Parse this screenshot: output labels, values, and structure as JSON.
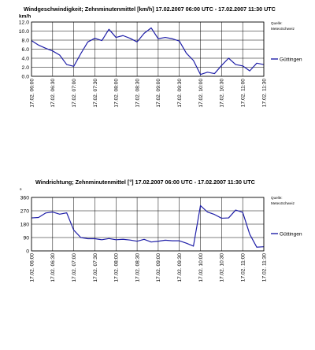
{
  "chart_data": [
    {
      "type": "line",
      "title": "Windgeschwindigkeit; Zehnminutenmittel [km/h] 17.02.2007 06:00 UTC - 17.02.2007 11:30 UTC",
      "ylabel": "km/h",
      "xlabel": "",
      "source_line1": "Quelle:",
      "source_line2": "MeteoSchweiz",
      "ylim": [
        0,
        12
      ],
      "yticks": [
        "0.0",
        "2.0",
        "4.0",
        "6.0",
        "8.0",
        "10.0",
        "12.0"
      ],
      "ytick_values": [
        0,
        2,
        4,
        6,
        8,
        10,
        12
      ],
      "xticks": [
        "17.02.  06:00",
        "17.02.  06:30",
        "17.02.  07:00",
        "17.02.  07:30",
        "17.02.  08:00",
        "17.02.  08:30",
        "17.02.  09:00",
        "17.02.  09:30",
        "17.02.  10:00",
        "17.02.  10:30",
        "17.02.  11:00",
        "17.02.  11:30"
      ],
      "grid": true,
      "legend_position": "right",
      "series": [
        {
          "name": "Güttingen",
          "color": "#1f1fa8",
          "values": [
            7.9,
            6.9,
            6.2,
            5.6,
            4.7,
            2.6,
            2.2,
            5.0,
            7.6,
            8.4,
            7.9,
            10.4,
            8.6,
            9.0,
            8.4,
            7.6,
            9.5,
            10.7,
            8.3,
            8.6,
            8.3,
            7.8,
            5.1,
            3.5,
            0.4,
            0.9,
            0.6,
            2.4,
            4.0,
            2.6,
            2.3,
            1.2,
            2.9,
            2.6
          ]
        }
      ]
    },
    {
      "type": "line",
      "title": "Windrichtung; Zehnminutenmittel [°] 17.02.2007 06:00 UTC - 17.02.2007 11:30 UTC",
      "ylabel": "°",
      "xlabel": "",
      "source_line1": "Quelle:",
      "source_line2": "MeteoSchweiz",
      "ylim": [
        0,
        360
      ],
      "yticks": [
        "0",
        "90",
        "180",
        "270",
        "360"
      ],
      "ytick_values": [
        0,
        90,
        180,
        270,
        360
      ],
      "xticks": [
        "17.02.  06:00",
        "17.02.  06:30",
        "17.02.  07:00",
        "17.02.  07:30",
        "17.02.  08:00",
        "17.02.  08:30",
        "17.02.  09:00",
        "17.02.  09:30",
        "17.02.  10:00",
        "17.02.  10:30",
        "17.02.  11:00",
        "17.02.  11:30"
      ],
      "grid": true,
      "legend_position": "right",
      "series": [
        {
          "name": "Güttingen",
          "color": "#1f1fa8",
          "values": [
            222,
            225,
            255,
            262,
            247,
            256,
            140,
            90,
            82,
            82,
            75,
            83,
            75,
            78,
            73,
            65,
            78,
            60,
            65,
            72,
            68,
            68,
            52,
            32,
            305,
            262,
            245,
            220,
            222,
            275,
            260,
            112,
            25,
            28
          ]
        }
      ]
    }
  ]
}
